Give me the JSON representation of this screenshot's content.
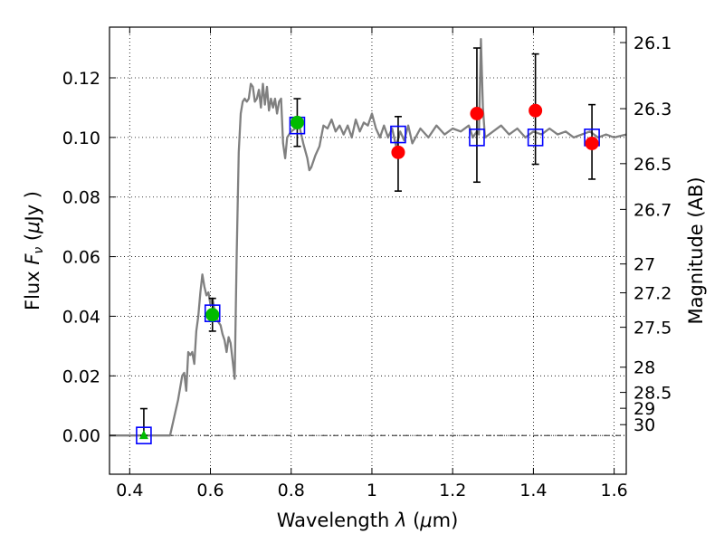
{
  "chart_data": {
    "type": "scatter",
    "title": "",
    "xlabel_parts": [
      "Wavelength  ",
      "λ",
      " (",
      "μ",
      "m)"
    ],
    "ylabel_parts": [
      "Flux  ",
      "F",
      "ν",
      "  (",
      "μ",
      "Jy )"
    ],
    "ylabel_right": "Magnitude (AB)",
    "xlim": [
      0.35,
      1.63
    ],
    "ylim": [
      -0.013,
      0.137
    ],
    "xticks": [
      0.4,
      0.6,
      0.8,
      1.0,
      1.2,
      1.4,
      1.6
    ],
    "xtick_labels": [
      "0.4",
      "0.6",
      "0.8",
      "1",
      "1.2",
      "1.4",
      "1.6"
    ],
    "yticks": [
      0.0,
      0.02,
      0.04,
      0.06,
      0.08,
      0.1,
      0.12
    ],
    "ytick_labels": [
      "0.00",
      "0.02",
      "0.04",
      "0.06",
      "0.08",
      "0.10",
      "0.12"
    ],
    "magnitude_ticks": [
      {
        "value": 26.1,
        "label": "26.1"
      },
      {
        "value": 26.3,
        "label": "26.3"
      },
      {
        "value": 26.5,
        "label": "26.5"
      },
      {
        "value": 26.7,
        "label": "26.7"
      },
      {
        "value": 27.0,
        "label": "27"
      },
      {
        "value": 27.2,
        "label": "27.2"
      },
      {
        "value": 27.5,
        "label": "27.5"
      },
      {
        "value": 28.0,
        "label": "28"
      },
      {
        "value": 28.5,
        "label": "28.5"
      },
      {
        "value": 29.0,
        "label": "29"
      },
      {
        "value": 30.0,
        "label": "30"
      }
    ],
    "grid": true,
    "zero_line": true,
    "colors": {
      "model": "#808080",
      "model_points": "#0000ff",
      "detection": "#00bb00",
      "upper_limit": "#00bb00",
      "ir_points": "#ff0000",
      "errorbar": "#000000"
    },
    "series": [
      {
        "kind": "line",
        "x": [
          0.35,
          0.48,
          0.5,
          0.52,
          0.53,
          0.535,
          0.54,
          0.545,
          0.55,
          0.555,
          0.56,
          0.565,
          0.57,
          0.575,
          0.58,
          0.585,
          0.59,
          0.595,
          0.6,
          0.605,
          0.61,
          0.615,
          0.62,
          0.625,
          0.63,
          0.635,
          0.64,
          0.645,
          0.65,
          0.655,
          0.66,
          0.665,
          0.67,
          0.675,
          0.68,
          0.685,
          0.69,
          0.695,
          0.7,
          0.705,
          0.71,
          0.715,
          0.72,
          0.725,
          0.73,
          0.735,
          0.74,
          0.745,
          0.75,
          0.755,
          0.76,
          0.765,
          0.77,
          0.775,
          0.78,
          0.785,
          0.79,
          0.8,
          0.81,
          0.82,
          0.83,
          0.84,
          0.845,
          0.85,
          0.86,
          0.87,
          0.88,
          0.89,
          0.9,
          0.91,
          0.92,
          0.93,
          0.94,
          0.95,
          0.96,
          0.97,
          0.98,
          0.99,
          1.0,
          1.01,
          1.02,
          1.03,
          1.04,
          1.05,
          1.06,
          1.07,
          1.08,
          1.09,
          1.1,
          1.12,
          1.14,
          1.16,
          1.18,
          1.2,
          1.22,
          1.24,
          1.25,
          1.26,
          1.265,
          1.27,
          1.275,
          1.28,
          1.3,
          1.32,
          1.34,
          1.36,
          1.38,
          1.4,
          1.42,
          1.44,
          1.46,
          1.48,
          1.5,
          1.52,
          1.54,
          1.56,
          1.58,
          1.6,
          1.63
        ],
        "y": [
          0.0,
          0.0,
          0.0,
          0.012,
          0.02,
          0.021,
          0.015,
          0.028,
          0.027,
          0.028,
          0.024,
          0.035,
          0.04,
          0.048,
          0.054,
          0.05,
          0.047,
          0.048,
          0.044,
          0.046,
          0.042,
          0.04,
          0.038,
          0.037,
          0.034,
          0.032,
          0.028,
          0.033,
          0.031,
          0.025,
          0.019,
          0.06,
          0.095,
          0.108,
          0.112,
          0.113,
          0.112,
          0.113,
          0.118,
          0.117,
          0.112,
          0.113,
          0.116,
          0.11,
          0.118,
          0.111,
          0.117,
          0.109,
          0.113,
          0.11,
          0.113,
          0.108,
          0.112,
          0.113,
          0.098,
          0.093,
          0.1,
          0.102,
          0.103,
          0.104,
          0.098,
          0.093,
          0.089,
          0.09,
          0.094,
          0.097,
          0.104,
          0.103,
          0.106,
          0.102,
          0.104,
          0.101,
          0.104,
          0.1,
          0.106,
          0.102,
          0.105,
          0.104,
          0.108,
          0.103,
          0.1,
          0.104,
          0.1,
          0.103,
          0.097,
          0.102,
          0.099,
          0.104,
          0.098,
          0.103,
          0.1,
          0.104,
          0.101,
          0.103,
          0.102,
          0.104,
          0.1,
          0.102,
          0.101,
          0.133,
          0.11,
          0.1,
          0.102,
          0.104,
          0.101,
          0.103,
          0.1,
          0.102,
          0.101,
          0.103,
          0.101,
          0.102,
          0.1,
          0.101,
          0.102,
          0.1,
          0.101,
          0.1,
          0.101
        ]
      },
      {
        "kind": "model_points",
        "x": [
          0.435,
          0.605,
          0.815,
          1.065,
          1.26,
          1.405,
          1.545
        ],
        "y": [
          0.0,
          0.041,
          0.104,
          0.101,
          0.1,
          0.1,
          0.1
        ]
      },
      {
        "kind": "upper_limit",
        "x": [
          0.435
        ],
        "y": [
          0.0
        ],
        "yerr": [
          [
            0.0,
            0.009
          ]
        ]
      },
      {
        "kind": "detections",
        "x": [
          0.605,
          0.815
        ],
        "y": [
          0.0405,
          0.105
        ],
        "yerr": [
          [
            0.035,
            0.046
          ],
          [
            0.097,
            0.113
          ]
        ]
      },
      {
        "kind": "ir_points",
        "x": [
          1.065,
          1.26,
          1.405,
          1.545
        ],
        "y": [
          0.095,
          0.108,
          0.109,
          0.098
        ],
        "yerr": [
          [
            0.082,
            0.107
          ],
          [
            0.085,
            0.13
          ],
          [
            0.091,
            0.128
          ],
          [
            0.086,
            0.111
          ]
        ]
      }
    ]
  }
}
